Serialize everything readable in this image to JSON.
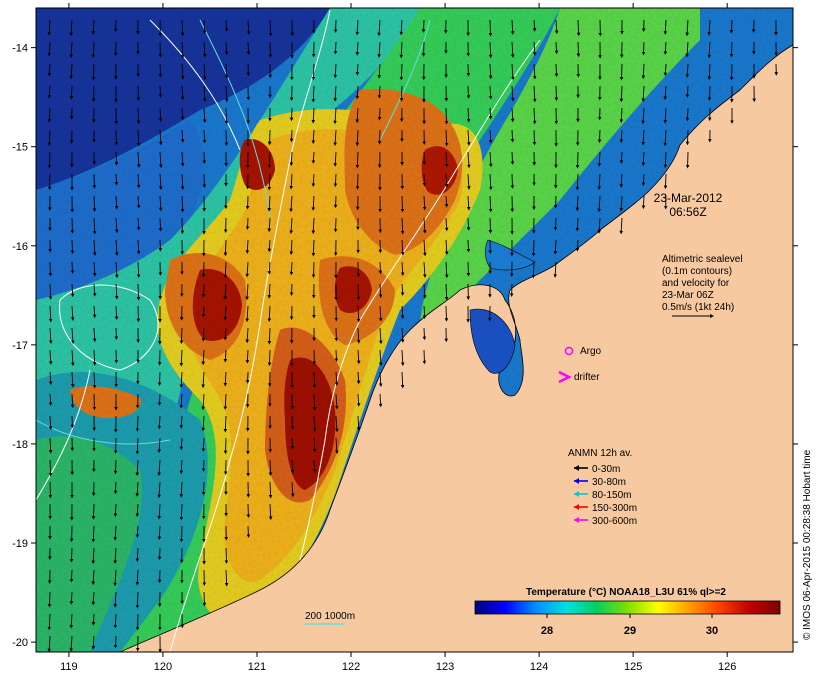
{
  "map": {
    "lat_labels": [
      "-14",
      "-15",
      "-16",
      "-17",
      "-18",
      "-19",
      "-20"
    ],
    "lon_labels": [
      "119",
      "120",
      "121",
      "122",
      "123",
      "124",
      "125",
      "126"
    ],
    "lat_range": [
      -20.1,
      -13.6
    ],
    "lon_range": [
      118.65,
      126.7
    ],
    "colors": {
      "land": "#f7c9a1",
      "ocean_deep_blue": "#1e3aa0",
      "current_arrow": "#000000",
      "contour": "#ffffff",
      "bathy_200m": "#66dddd"
    }
  },
  "annotations": {
    "date": "23-Mar-2012",
    "time": "06:56Z",
    "altimetry_lines": [
      "Altimetric sealevel",
      "(0.1m contours)",
      "and velocity for",
      "23-Mar 06Z",
      "0.5m/s (1kt 24h)"
    ],
    "argo_label": "Argo",
    "drifter_label": "drifter",
    "bathymetry_label": "200  1000m"
  },
  "anmn_legend": {
    "title": "ANMN 12h av.",
    "items": [
      {
        "label": "0-30m",
        "color": "#000000"
      },
      {
        "label": "30-80m",
        "color": "#0000ff"
      },
      {
        "label": "80-150m",
        "color": "#00cccc"
      },
      {
        "label": "150-300m",
        "color": "#ff0000"
      },
      {
        "label": "300-600m",
        "color": "#ff00ff"
      }
    ]
  },
  "colorbar": {
    "title": "Temperature (°C) NOAA18_L3U 61% ql>=2",
    "ticks": [
      "28",
      "29",
      "30"
    ],
    "stops": [
      "#000080",
      "#0000ff",
      "#0090ff",
      "#00e0e0",
      "#00d060",
      "#80e000",
      "#ffff00",
      "#ffa000",
      "#ff4000",
      "#c00000",
      "#800000"
    ]
  },
  "credit": "© IMOS 06-Apr-2015 00:28:38 Hobart time"
}
